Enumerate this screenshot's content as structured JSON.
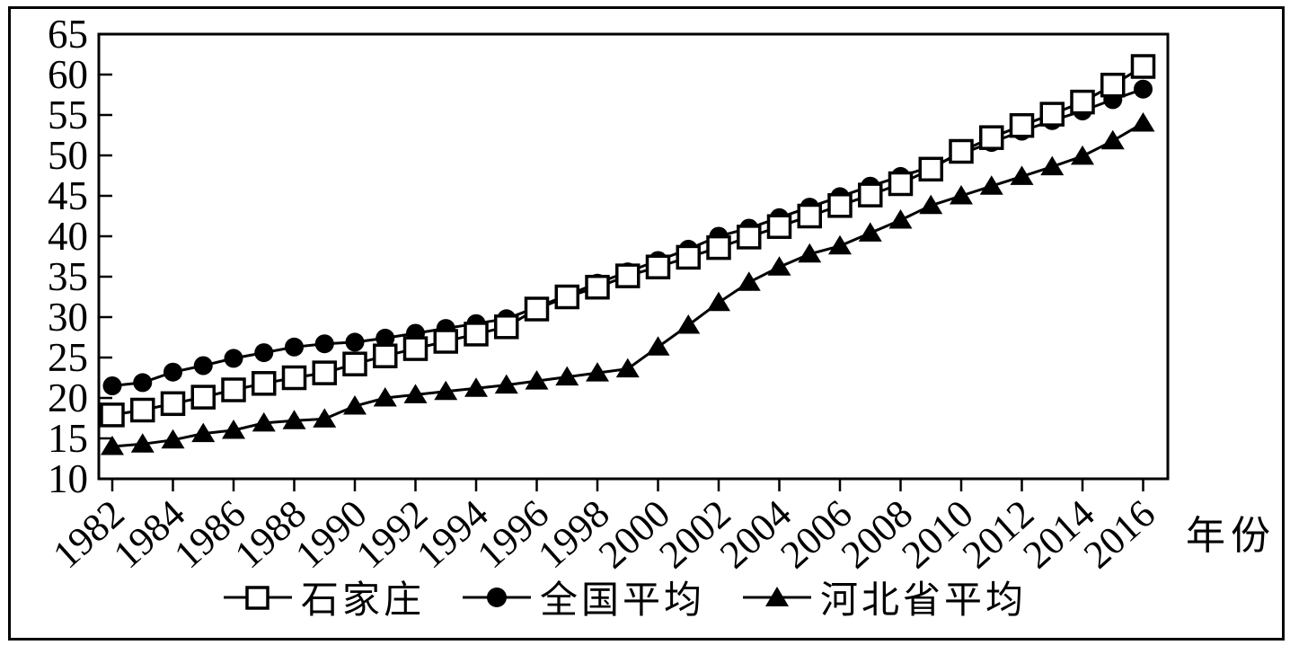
{
  "chart_data": {
    "type": "line",
    "title": "",
    "xlabel": "年份",
    "ylabel": "",
    "ylim": [
      10,
      65
    ],
    "y_ticks": [
      10,
      15,
      20,
      25,
      30,
      35,
      40,
      45,
      50,
      55,
      60,
      65
    ],
    "x_tick_labels": [
      "1982",
      "1984",
      "1986",
      "1988",
      "1990",
      "1992",
      "1994",
      "1996",
      "1998",
      "2000",
      "2002",
      "2004",
      "2006",
      "2008",
      "2010",
      "2012",
      "2014",
      "2016"
    ],
    "grid": false,
    "legend_position": "bottom",
    "line_color": "#000000",
    "x": [
      1982,
      1983,
      1984,
      1985,
      1986,
      1987,
      1988,
      1989,
      1990,
      1991,
      1992,
      1993,
      1994,
      1995,
      1996,
      1997,
      1998,
      1999,
      2000,
      2001,
      2002,
      2003,
      2004,
      2005,
      2006,
      2007,
      2008,
      2009,
      2010,
      2011,
      2012,
      2013,
      2014,
      2015,
      2016
    ],
    "series": [
      {
        "name": "石家庄",
        "marker": "open-square",
        "stroke": "#000000",
        "fill": "#ffffff",
        "values": [
          17.9,
          18.5,
          19.3,
          20.1,
          21.0,
          21.8,
          22.5,
          23.1,
          24.2,
          25.2,
          26.1,
          27.0,
          27.9,
          28.8,
          31.0,
          32.5,
          33.7,
          35.1,
          36.2,
          37.4,
          38.6,
          39.9,
          41.2,
          42.5,
          43.8,
          45.1,
          46.5,
          48.3,
          50.5,
          52.2,
          53.7,
          55.1,
          56.6,
          58.7,
          61.0
        ]
      },
      {
        "name": "全国平均",
        "marker": "filled-circle",
        "stroke": "#000000",
        "fill": "#000000",
        "values": [
          21.5,
          21.9,
          23.2,
          24.0,
          24.9,
          25.6,
          26.3,
          26.7,
          26.9,
          27.4,
          28.0,
          28.6,
          29.2,
          29.8,
          31.2,
          32.7,
          34.2,
          35.6,
          37.0,
          38.4,
          40.0,
          41.0,
          42.3,
          43.6,
          44.9,
          46.2,
          47.4,
          48.6,
          50.2,
          51.6,
          53.0,
          54.3,
          55.5,
          56.9,
          58.2
        ]
      },
      {
        "name": "河北省平均",
        "marker": "filled-triangle",
        "stroke": "#000000",
        "fill": "#000000",
        "values": [
          14.0,
          14.3,
          14.8,
          15.6,
          16.0,
          16.9,
          17.2,
          17.4,
          19.0,
          20.0,
          20.4,
          20.8,
          21.2,
          21.6,
          22.1,
          22.6,
          23.1,
          23.6,
          26.3,
          29.0,
          31.8,
          34.3,
          36.2,
          37.8,
          38.8,
          40.4,
          42.0,
          43.8,
          45.0,
          46.2,
          47.4,
          48.6,
          49.9,
          51.8,
          54.0
        ]
      }
    ]
  }
}
